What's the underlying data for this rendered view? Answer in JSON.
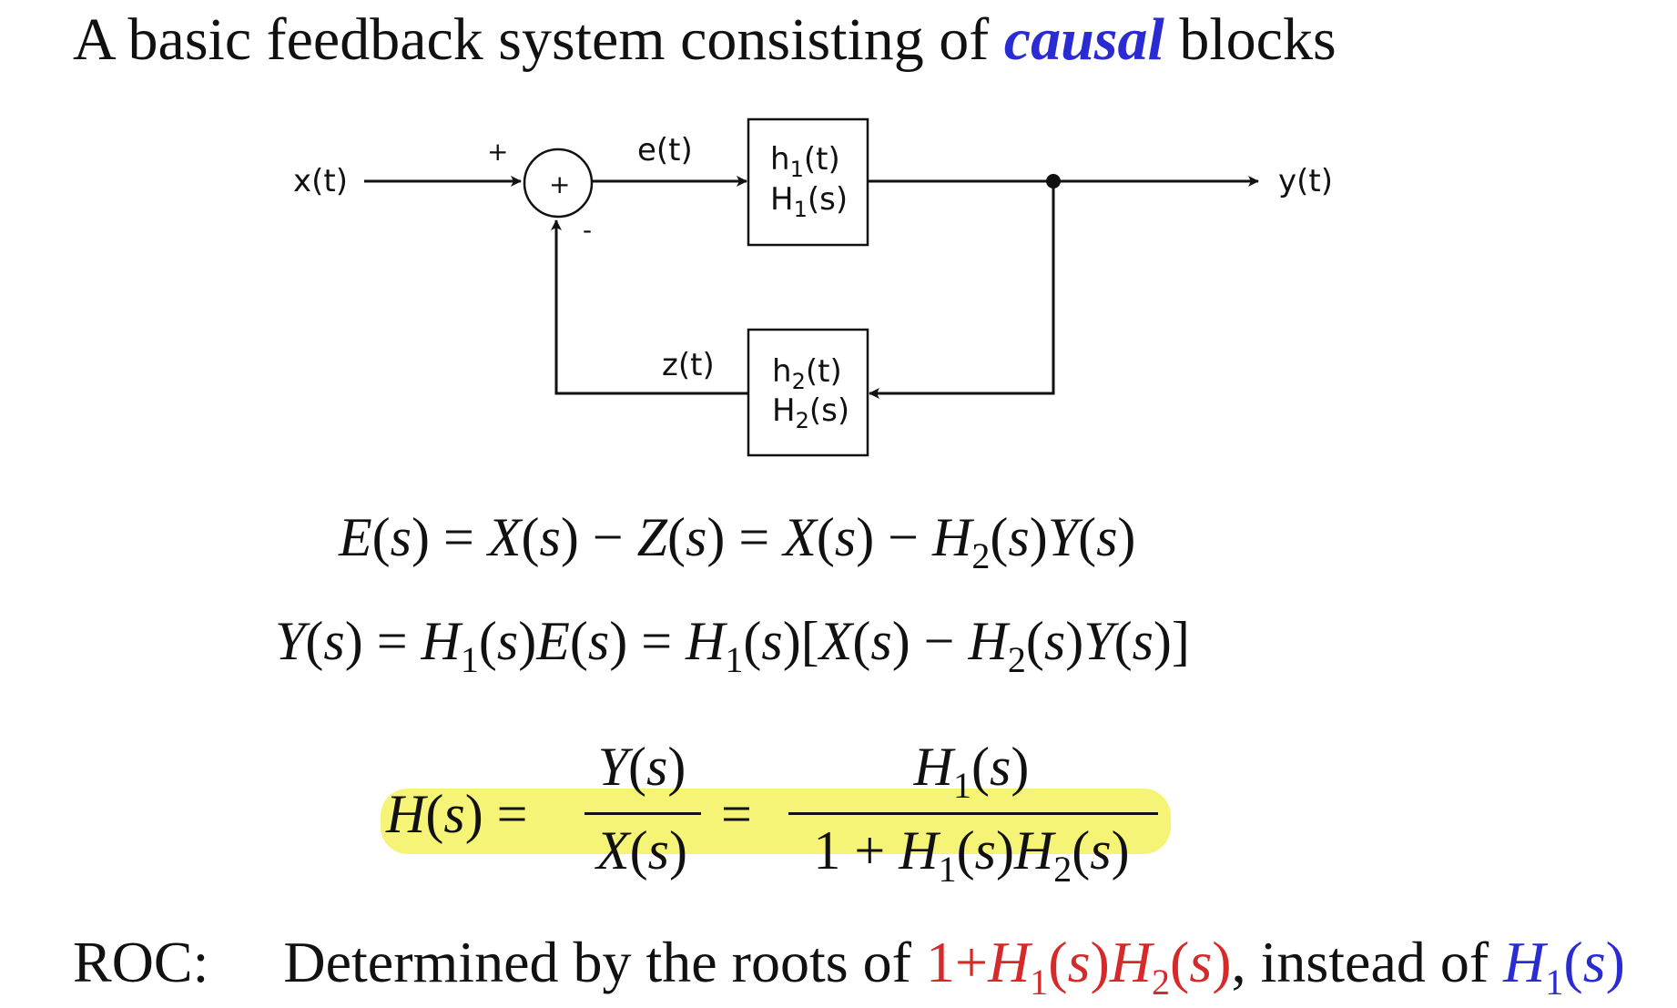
{
  "title": {
    "prefix": "A basic feedback system consisting of ",
    "emphasis": "causal",
    "suffix": " blocks"
  },
  "diagram": {
    "input": "x(t)",
    "output": "y(t)",
    "error": "e(t)",
    "feedback": "z(t)",
    "plus_sign": "+",
    "minus_sign": "-",
    "summer_symbol": "+",
    "block1": {
      "line1_main": "h",
      "line1_sub": "1",
      "line1_tail": "(t)",
      "line2_main": "H",
      "line2_sub": "1",
      "line2_tail": "(s)"
    },
    "block2": {
      "line1_main": "h",
      "line1_sub": "2",
      "line1_tail": "(t)",
      "line2_main": "H",
      "line2_sub": "2",
      "line2_tail": "(s)"
    }
  },
  "roc": {
    "label": "ROC:",
    "text": "Determined by the roots of ",
    "cond_prefix": "1+",
    "separator": ", instead of "
  },
  "colors": {
    "emphasis": "#2b2bd4",
    "condition": "#d42a2a",
    "highlight": "#f5f25f"
  }
}
